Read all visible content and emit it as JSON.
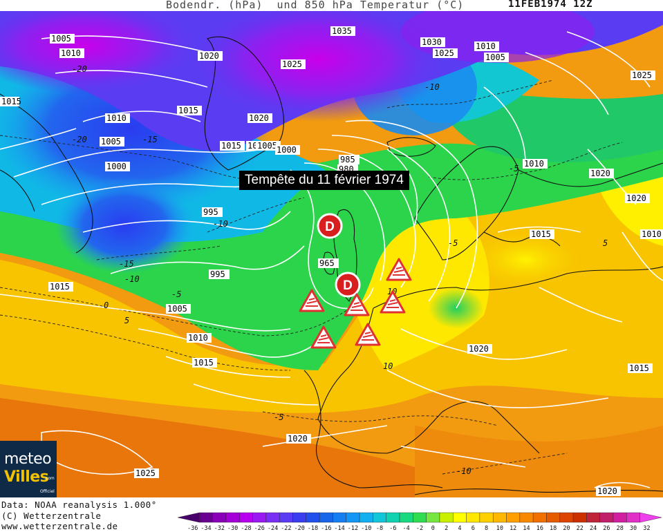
{
  "header": {
    "title": "Bodendr. (hPa)  und 850 hPa Temperatur (°C)",
    "date": "11FEB1974 12Z"
  },
  "annotation": {
    "banner": "Tempête du 11 février 1974",
    "low_label": "D"
  },
  "isobar_labels": [
    "1005",
    "1010",
    "1020",
    "1035",
    "1030",
    "1010",
    "1025",
    "1025",
    "1015",
    "1015",
    "1010",
    "1020",
    "1005",
    "1015",
    "1010",
    "1005",
    "1000",
    "1000",
    "985",
    "980",
    "995",
    "965",
    "995",
    "1005",
    "1010",
    "1015",
    "1015",
    "1020",
    "1020",
    "1015",
    "1025",
    "1010",
    "1005",
    "1015",
    "1020",
    "1020",
    "1025",
    "1010",
    "1020"
  ],
  "isotherm_labels": [
    "-20",
    "-15",
    "-10",
    "-15",
    "-10",
    "-5",
    "-5",
    "0",
    "5",
    "10",
    "-5",
    "-10",
    "-20",
    "-5",
    "5",
    "10",
    "-10"
  ],
  "logo": {
    "line1": "meteo",
    "line2": "Villes",
    "suffix": ".com",
    "tag": "Officiel"
  },
  "credits": {
    "line1": "Data: NOAA reanalysis 1.000°",
    "line2": "(C) Wetterzentrale",
    "line3": "www.wetterzentrale.de"
  },
  "legend": {
    "ticks": [
      "-36",
      "-34",
      "-32",
      "-30",
      "-28",
      "-26",
      "-24",
      "-22",
      "-20",
      "-18",
      "-16",
      "-14",
      "-12",
      "-10",
      "-8",
      "-6",
      "-4",
      "-2",
      "0",
      "2",
      "4",
      "6",
      "8",
      "10",
      "12",
      "14",
      "16",
      "18",
      "20",
      "22",
      "24",
      "26",
      "28",
      "30",
      "32"
    ],
    "colors": [
      "#48006a",
      "#6a0090",
      "#8a00b8",
      "#a400d8",
      "#b800f0",
      "#9a18f2",
      "#7a30f4",
      "#5a3cf4",
      "#3a3ef0",
      "#2250ec",
      "#1a66ea",
      "#167ef0",
      "#1496f4",
      "#12b0f0",
      "#10c6d8",
      "#10d2b0",
      "#18d880",
      "#30dc50",
      "#78e640",
      "#c8f000",
      "#ffff00",
      "#ffe800",
      "#ffd000",
      "#ffb800",
      "#ffa000",
      "#f88800",
      "#f07000",
      "#e65a00",
      "#dc4400",
      "#cc3000",
      "#c02438",
      "#c0206a",
      "#d020a0",
      "#e030c8",
      "#ee40ec"
    ]
  }
}
